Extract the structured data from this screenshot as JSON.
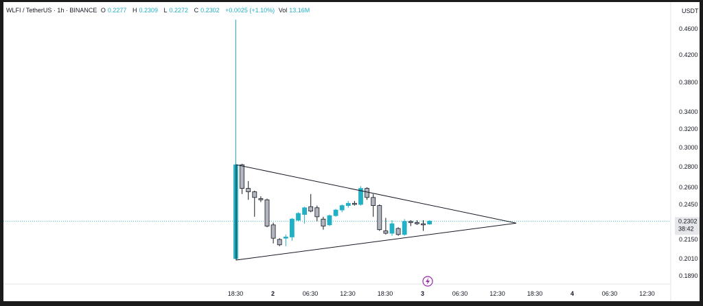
{
  "legend": {
    "symbol": "WLFI / TetherUS · 1h · BINANCE",
    "o_label": "O",
    "o": "0.2277",
    "h_label": "H",
    "h": "0.2309",
    "l_label": "L",
    "l": "0.2272",
    "c_label": "C",
    "c": "0.2302",
    "change": "+0.0025 (+1.10%)",
    "vol_label": "Vol",
    "vol": "13.16M"
  },
  "currency": "USDT",
  "price_badge": {
    "price": "0.2302",
    "countdown": "38:42"
  },
  "colors": {
    "up": "#22b0c4",
    "down": "#b2b5be",
    "down_border": "#131722",
    "triangle": "#131722",
    "flash": "#9c27b0"
  },
  "flash_icon": "lightning-icon",
  "chart_data": {
    "type": "candlestick",
    "y_ticks": [
      "0.4600",
      "0.4200",
      "0.3800",
      "0.3400",
      "0.3200",
      "0.3000",
      "0.2800",
      "0.2600",
      "0.2450",
      "0.2150",
      "0.2010",
      "0.1890"
    ],
    "x_ticks": [
      {
        "label": "18:30",
        "bold": false
      },
      {
        "label": "2",
        "bold": true
      },
      {
        "label": "06:30",
        "bold": false
      },
      {
        "label": "12:30",
        "bold": false
      },
      {
        "label": "18:30",
        "bold": false
      },
      {
        "label": "3",
        "bold": true
      },
      {
        "label": "06:30",
        "bold": false
      },
      {
        "label": "12:30",
        "bold": false
      },
      {
        "label": "18:30",
        "bold": false
      },
      {
        "label": "4",
        "bold": true
      },
      {
        "label": "06:30",
        "bold": false
      },
      {
        "label": "12:30",
        "bold": false
      }
    ],
    "current_price": 0.2302,
    "candles": [
      {
        "o": 0.201,
        "h": 0.475,
        "l": 0.201,
        "c": 0.282
      },
      {
        "o": 0.282,
        "h": 0.283,
        "l": 0.254,
        "c": 0.259
      },
      {
        "o": 0.259,
        "h": 0.266,
        "l": 0.249,
        "c": 0.256
      },
      {
        "o": 0.256,
        "h": 0.257,
        "l": 0.234,
        "c": 0.251
      },
      {
        "o": 0.25,
        "h": 0.252,
        "l": 0.247,
        "c": 0.249
      },
      {
        "o": 0.249,
        "h": 0.25,
        "l": 0.225,
        "c": 0.226
      },
      {
        "o": 0.227,
        "h": 0.229,
        "l": 0.212,
        "c": 0.216
      },
      {
        "o": 0.215,
        "h": 0.216,
        "l": 0.21,
        "c": 0.211
      },
      {
        "o": 0.216,
        "h": 0.219,
        "l": 0.21,
        "c": 0.217
      },
      {
        "o": 0.217,
        "h": 0.233,
        "l": 0.214,
        "c": 0.232
      },
      {
        "o": 0.231,
        "h": 0.238,
        "l": 0.23,
        "c": 0.237
      },
      {
        "o": 0.236,
        "h": 0.243,
        "l": 0.228,
        "c": 0.242
      },
      {
        "o": 0.243,
        "h": 0.254,
        "l": 0.238,
        "c": 0.239
      },
      {
        "o": 0.242,
        "h": 0.244,
        "l": 0.23,
        "c": 0.234
      },
      {
        "o": 0.232,
        "h": 0.234,
        "l": 0.223,
        "c": 0.226
      },
      {
        "o": 0.227,
        "h": 0.236,
        "l": 0.226,
        "c": 0.235
      },
      {
        "o": 0.235,
        "h": 0.241,
        "l": 0.234,
        "c": 0.24
      },
      {
        "o": 0.24,
        "h": 0.245,
        "l": 0.238,
        "c": 0.244
      },
      {
        "o": 0.244,
        "h": 0.248,
        "l": 0.242,
        "c": 0.246
      },
      {
        "o": 0.246,
        "h": 0.248,
        "l": 0.244,
        "c": 0.245
      },
      {
        "o": 0.245,
        "h": 0.261,
        "l": 0.244,
        "c": 0.259
      },
      {
        "o": 0.259,
        "h": 0.26,
        "l": 0.249,
        "c": 0.251
      },
      {
        "o": 0.251,
        "h": 0.254,
        "l": 0.234,
        "c": 0.244
      },
      {
        "o": 0.244,
        "h": 0.245,
        "l": 0.222,
        "c": 0.223
      },
      {
        "o": 0.222,
        "h": 0.233,
        "l": 0.219,
        "c": 0.22
      },
      {
        "o": 0.22,
        "h": 0.231,
        "l": 0.218,
        "c": 0.228
      },
      {
        "o": 0.224,
        "h": 0.225,
        "l": 0.218,
        "c": 0.219
      },
      {
        "o": 0.219,
        "h": 0.232,
        "l": 0.218,
        "c": 0.23
      },
      {
        "o": 0.23,
        "h": 0.231,
        "l": 0.226,
        "c": 0.229
      },
      {
        "o": 0.229,
        "h": 0.231,
        "l": 0.227,
        "c": 0.228
      },
      {
        "o": 0.228,
        "h": 0.231,
        "l": 0.222,
        "c": 0.227
      },
      {
        "o": 0.2277,
        "h": 0.2309,
        "l": 0.2272,
        "c": 0.2302
      }
    ],
    "triangle": {
      "upper_start": 0.282,
      "lower_start": 0.2,
      "apex": 0.2285
    }
  }
}
